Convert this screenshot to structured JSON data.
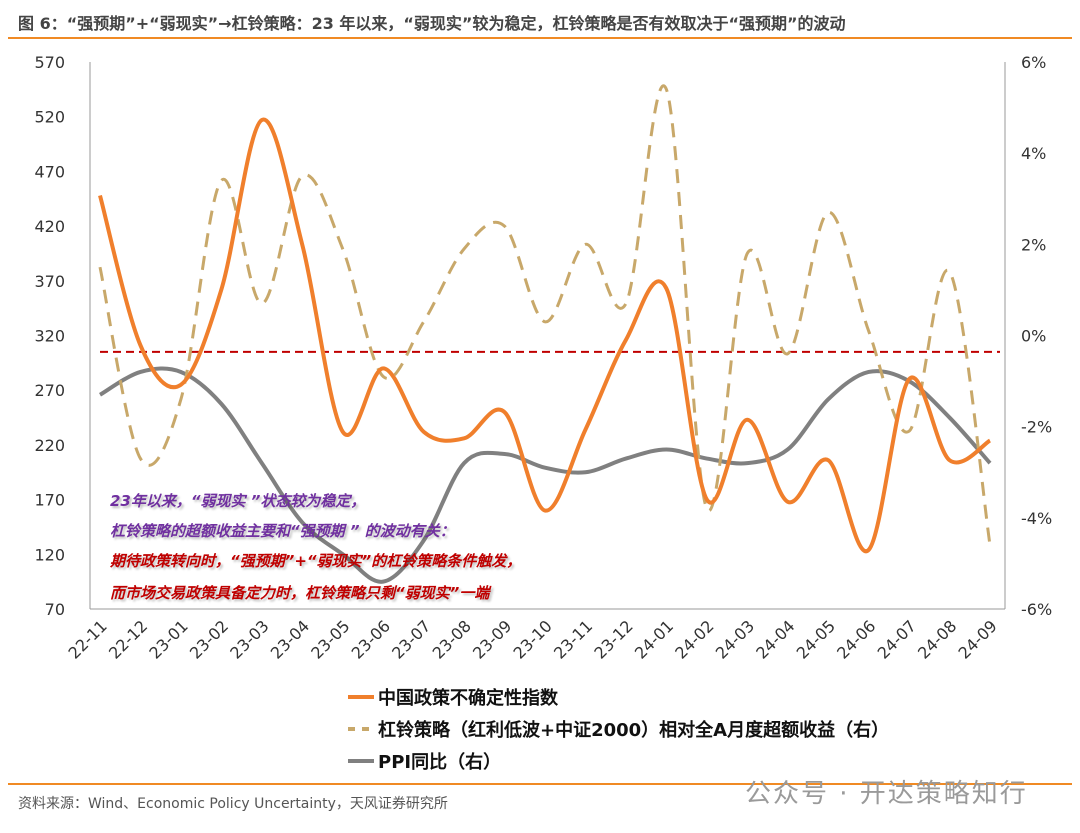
{
  "title": "图 6：“强预期”+“弱现实”→杠铃策略：23 年以来，“弱现实”较为稳定，杠铃策略是否有效取决于“强预期”的波动",
  "source": "资料来源：Wind、Economic Policy Uncertainty，天风证券研究所",
  "watermark": "公众号 · 开达策略知行",
  "annotations": [
    {
      "text": "23年以来，“弱现实 ”状态较为稳定，",
      "color": "#7030a0"
    },
    {
      "text": "杠铃策略的超额收益主要和“强预期 ” 的波动有关：",
      "color": "#7030a0"
    },
    {
      "text": "期待政策转向时，“强预期”+“弱现实”的杠铃策略条件触发，",
      "color": "#c00000"
    },
    {
      "text": "而市场交易政策具备定力时，杠铃策略只剩“弱现实”一端",
      "color": "#c00000"
    }
  ],
  "chart_data": {
    "type": "line",
    "categories": [
      "22-11",
      "22-12",
      "23-01",
      "23-02",
      "23-03",
      "23-04",
      "23-05",
      "23-06",
      "23-07",
      "23-08",
      "23-09",
      "23-10",
      "23-11",
      "23-12",
      "24-01",
      "24-02",
      "24-03",
      "24-04",
      "24-05",
      "24-06",
      "24-07",
      "24-08",
      "24-09"
    ],
    "left_axis": {
      "min": 70,
      "max": 570,
      "ticks": [
        70,
        120,
        170,
        220,
        270,
        320,
        370,
        420,
        470,
        520,
        570
      ]
    },
    "right_axis": {
      "min": -6,
      "max": 6,
      "ticks": [
        "-6%",
        "-4%",
        "-2%",
        "0%",
        "2%",
        "4%",
        "6%"
      ]
    },
    "reference_line": {
      "axis": "left",
      "value": 305,
      "color": "#c00000",
      "style": "dashed"
    },
    "series": [
      {
        "name": "中国政策不确定性指数",
        "axis": "left",
        "color": "#f07f2c",
        "style": "solid",
        "values": [
          448,
          311,
          275,
          362,
          517,
          403,
          232,
          290,
          232,
          226,
          250,
          160,
          234,
          316,
          363,
          170,
          243,
          168,
          206,
          124,
          280,
          206,
          224
        ]
      },
      {
        "name": "杠铃策略（红利低波+中证2000）相对全A月度超额收益（右）",
        "axis": "right",
        "color": "#c8a86a",
        "style": "dashed",
        "values": [
          1.5,
          -2.7,
          -1.4,
          3.4,
          0.7,
          3.5,
          1.9,
          -0.9,
          0.3,
          1.9,
          2.4,
          0.3,
          2.0,
          0.7,
          5.4,
          -3.8,
          1.8,
          -0.4,
          2.7,
          0.1,
          -2.1,
          1.4,
          -4.6
        ]
      },
      {
        "name": "PPI同比（右）",
        "axis": "right",
        "color": "#808080",
        "style": "solid",
        "values": [
          -1.3,
          -0.8,
          -0.8,
          -1.5,
          -2.8,
          -4.1,
          -4.8,
          -5.4,
          -4.5,
          -2.8,
          -2.6,
          -2.9,
          -3.0,
          -2.7,
          -2.5,
          -2.7,
          -2.8,
          -2.5,
          -1.4,
          -0.8,
          -1.0,
          -1.8,
          -2.8
        ]
      }
    ],
    "legend_placement": "bottom",
    "grid": false
  }
}
